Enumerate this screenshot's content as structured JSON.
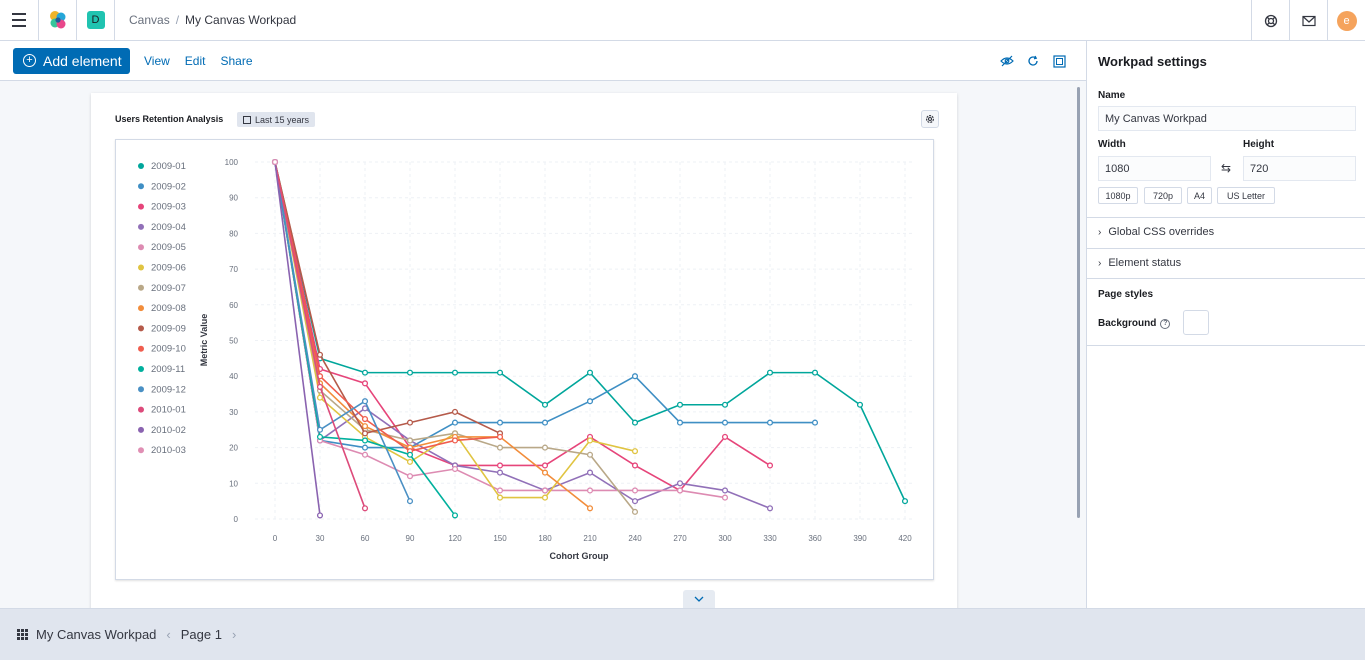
{
  "header": {
    "space_initial": "D",
    "breadcrumbs": [
      "Canvas",
      "My Canvas Workpad"
    ],
    "user_initial": "e"
  },
  "toolbar": {
    "add_label": "Add element",
    "view_label": "View",
    "edit_label": "Edit",
    "share_label": "Share"
  },
  "panel": {
    "title": "Users Retention Analysis",
    "time_range": "Last 15 years"
  },
  "chart_data": {
    "type": "line",
    "xlabel": "Cohort Group",
    "ylabel": "Metric Value",
    "xticks": [
      0,
      30,
      60,
      90,
      120,
      150,
      180,
      210,
      240,
      270,
      300,
      330,
      360,
      390,
      420
    ],
    "yticks": [
      0,
      10,
      20,
      30,
      40,
      50,
      60,
      70,
      80,
      90,
      100
    ],
    "xlim": [
      0,
      420
    ],
    "ylim": [
      0,
      100
    ],
    "legend_position": "left",
    "series": [
      {
        "name": "2009-01",
        "color": "#00a69b",
        "x": [
          0,
          30,
          60,
          90,
          120,
          150,
          180,
          210,
          240,
          270,
          300,
          330,
          360,
          390,
          420
        ],
        "y": [
          100,
          45,
          41,
          41,
          41,
          41,
          32,
          41,
          27,
          32,
          32,
          41,
          41,
          32,
          5
        ]
      },
      {
        "name": "2009-02",
        "color": "#3f8fc4",
        "x": [
          0,
          30,
          60,
          90,
          120,
          150,
          180,
          210,
          240,
          270,
          300,
          330,
          360
        ],
        "y": [
          100,
          22,
          20,
          20,
          27,
          27,
          27,
          33,
          40,
          27,
          27,
          27,
          27
        ]
      },
      {
        "name": "2009-03",
        "color": "#e6457a",
        "x": [
          0,
          30,
          60,
          90,
          120,
          150,
          180,
          210,
          240,
          270,
          300,
          330
        ],
        "y": [
          100,
          42,
          38,
          20,
          15,
          15,
          15,
          23,
          15,
          8,
          23,
          15
        ]
      },
      {
        "name": "2009-04",
        "color": "#9170b8",
        "x": [
          0,
          30,
          60,
          90,
          120,
          150,
          180,
          210,
          240,
          270,
          300,
          330
        ],
        "y": [
          100,
          22,
          31,
          22,
          15,
          13,
          8,
          13,
          5,
          10,
          8,
          3
        ]
      },
      {
        "name": "2009-05",
        "color": "#dd8bb2",
        "x": [
          0,
          30,
          60,
          90,
          120,
          150,
          180,
          210,
          240,
          270,
          300
        ],
        "y": [
          100,
          22,
          18,
          12,
          14,
          8,
          8,
          8,
          8,
          8,
          6
        ]
      },
      {
        "name": "2009-06",
        "color": "#e0c441",
        "x": [
          0,
          30,
          60,
          90,
          120,
          150,
          180,
          210,
          240
        ],
        "y": [
          100,
          34,
          23,
          16,
          24,
          6,
          6,
          22,
          19
        ]
      },
      {
        "name": "2009-07",
        "color": "#b9a888",
        "x": [
          0,
          30,
          60,
          90,
          120,
          150,
          180,
          210,
          240
        ],
        "y": [
          100,
          36,
          25,
          22,
          24,
          20,
          20,
          18,
          2
        ]
      },
      {
        "name": "2009-08",
        "color": "#f28d3b",
        "x": [
          0,
          30,
          60,
          90,
          120,
          150,
          180,
          210
        ],
        "y": [
          100,
          38,
          26,
          20,
          23,
          23,
          13,
          3
        ]
      },
      {
        "name": "2009-09",
        "color": "#b55a4a",
        "x": [
          0,
          30,
          60,
          90,
          120,
          150
        ],
        "y": [
          100,
          46,
          24,
          27,
          30,
          24
        ]
      },
      {
        "name": "2009-10",
        "color": "#f05d4e",
        "x": [
          0,
          30,
          60,
          90,
          120,
          150
        ],
        "y": [
          100,
          40,
          28,
          19,
          22,
          23
        ]
      },
      {
        "name": "2009-11",
        "color": "#00b09d",
        "x": [
          0,
          30,
          60,
          90,
          120
        ],
        "y": [
          100,
          23,
          22,
          18,
          1
        ]
      },
      {
        "name": "2009-12",
        "color": "#4a90c4",
        "x": [
          0,
          30,
          60,
          90
        ],
        "y": [
          100,
          25,
          33,
          5
        ]
      },
      {
        "name": "2010-01",
        "color": "#dd4b7b",
        "x": [
          0,
          30,
          60
        ],
        "y": [
          100,
          37,
          3
        ]
      },
      {
        "name": "2010-02",
        "color": "#8a63b0",
        "x": [
          0,
          30
        ],
        "y": [
          100,
          1
        ]
      },
      {
        "name": "2010-03",
        "color": "#e08fb4",
        "x": [
          0
        ],
        "y": [
          100
        ]
      }
    ]
  },
  "footer": {
    "workpad_name": "My Canvas Workpad",
    "page_label": "Page 1"
  },
  "sidebar": {
    "title": "Workpad settings",
    "name_label": "Name",
    "name_value": "My Canvas Workpad",
    "width_label": "Width",
    "width_value": "1080",
    "height_label": "Height",
    "height_value": "720",
    "presets": [
      "1080p",
      "720p",
      "A4",
      "US Letter"
    ],
    "css_overrides_label": "Global CSS overrides",
    "element_status_label": "Element status",
    "page_styles_label": "Page styles",
    "background_label": "Background",
    "background_color": "#ffffff"
  }
}
